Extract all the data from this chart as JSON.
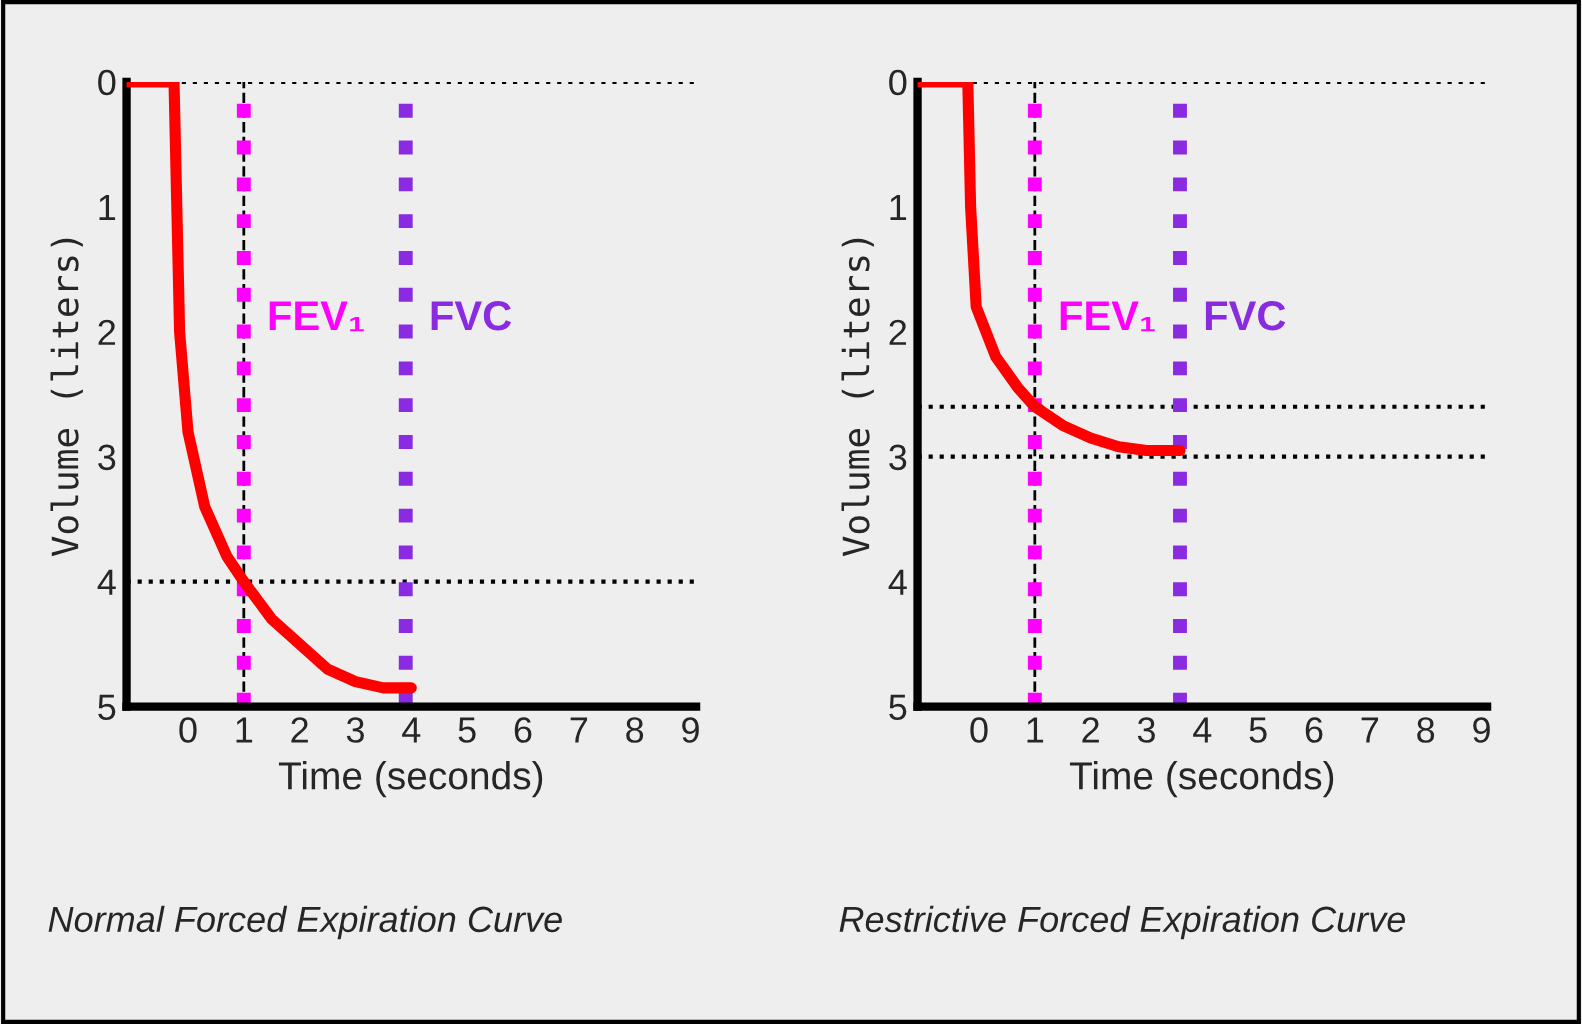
{
  "chart_data": [
    {
      "type": "line",
      "xlabel": "Time (seconds)",
      "ylabel": "Volume (liters)",
      "annotations": [
        "Normal Forced Expiration Curve"
      ],
      "xlim": [
        -1.1,
        9.1
      ],
      "ylim": [
        5,
        0
      ],
      "xticks": [
        0,
        1,
        2,
        3,
        4,
        5,
        6,
        7,
        8,
        9
      ],
      "yticks": [
        0,
        1,
        2,
        3,
        4,
        5
      ],
      "grid": false,
      "line_style": "solid",
      "series": [
        {
          "color": "#ff0000",
          "x": [
            -1.1,
            -0.25,
            -0.2,
            -0.15,
            0,
            0.3,
            0.7,
            1,
            1.5,
            2,
            2.5,
            3,
            3.5,
            4
          ],
          "values": [
            0,
            0,
            1,
            2,
            2.8,
            3.4,
            3.8,
            4.0,
            4.3,
            4.5,
            4.7,
            4.8,
            4.85,
            4.85
          ]
        }
      ],
      "ref_lines": [
        {
          "axis": "y",
          "value": 0,
          "color": "#000000",
          "line_style": "dotted"
        },
        {
          "axis": "y",
          "value": 4,
          "color": "#000000",
          "line_style": "dotted"
        },
        {
          "axis": "x",
          "value": 1,
          "color": "#000000",
          "line_style": "dashed"
        },
        {
          "axis": "x",
          "value": 1,
          "label": "FEV₁",
          "color": "#ff00ff",
          "line_style": "dotted"
        },
        {
          "axis": "x",
          "value": 3.9,
          "label": "FVC",
          "color": "#8a2be2",
          "line_style": "dotted"
        }
      ]
    },
    {
      "type": "line",
      "xlabel": "Time (seconds)",
      "ylabel": "Volume (liters)",
      "annotations": [
        "Restrictive Forced Expiration Curve"
      ],
      "xlim": [
        -1.1,
        9.1
      ],
      "ylim": [
        5,
        0
      ],
      "xticks": [
        0,
        1,
        2,
        3,
        4,
        5,
        6,
        7,
        8,
        9
      ],
      "yticks": [
        0,
        1,
        2,
        3,
        4,
        5
      ],
      "grid": false,
      "line_style": "solid",
      "series": [
        {
          "color": "#ff0000",
          "x": [
            -1.1,
            -0.2,
            -0.15,
            -0.05,
            0.3,
            0.7,
            1,
            1.5,
            2,
            2.5,
            3,
            3.6
          ],
          "values": [
            0,
            0,
            1,
            1.8,
            2.2,
            2.45,
            2.6,
            2.75,
            2.85,
            2.92,
            2.95,
            2.95
          ]
        }
      ],
      "ref_lines": [
        {
          "axis": "y",
          "value": 0,
          "color": "#000000",
          "line_style": "dotted"
        },
        {
          "axis": "y",
          "value": 2.6,
          "color": "#000000",
          "line_style": "dotted"
        },
        {
          "axis": "y",
          "value": 3,
          "color": "#000000",
          "line_style": "dotted"
        },
        {
          "axis": "x",
          "value": 1,
          "color": "#000000",
          "line_style": "dashed"
        },
        {
          "axis": "x",
          "value": 1,
          "label": "FEV₁",
          "color": "#ff00ff",
          "line_style": "dotted"
        },
        {
          "axis": "x",
          "value": 3.6,
          "label": "FVC",
          "color": "#8a2be2",
          "line_style": "dotted"
        }
      ]
    }
  ]
}
